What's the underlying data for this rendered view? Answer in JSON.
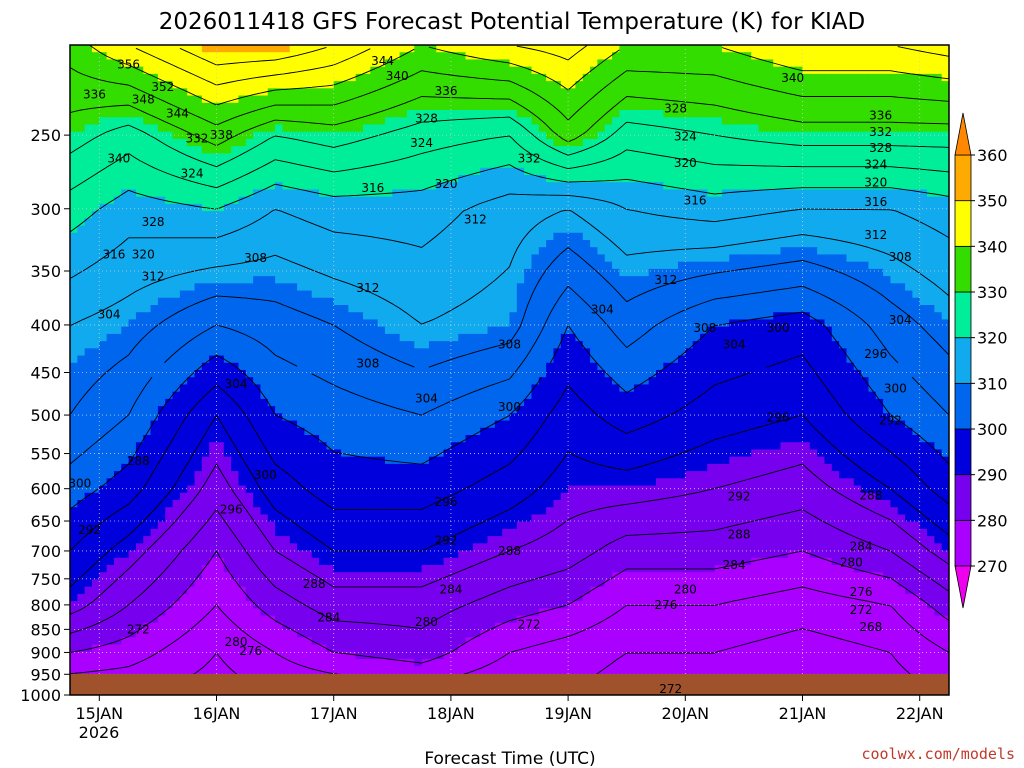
{
  "chart_data": {
    "type": "heatmap",
    "title": "2026011418 GFS Forecast Potential Temperature (K) for KIAD",
    "xlabel": "Forecast Time (UTC)",
    "ylabel": "",
    "x_ticks": [
      "15JAN",
      "16JAN",
      "17JAN",
      "18JAN",
      "19JAN",
      "20JAN",
      "21JAN",
      "22JAN"
    ],
    "x_year": "2026",
    "y_axis": {
      "scale": "log",
      "range": [
        1000,
        200
      ],
      "ticks": [
        250,
        300,
        350,
        400,
        450,
        500,
        550,
        600,
        650,
        700,
        750,
        800,
        850,
        900,
        950,
        1000
      ]
    },
    "x_range_hours": [
      -6,
      174
    ],
    "grid": true,
    "colorbar": {
      "levels": [
        270,
        280,
        290,
        300,
        310,
        320,
        330,
        340,
        350,
        360
      ],
      "colors": [
        "#ee00ee",
        "#aa00ff",
        "#7700ee",
        "#0000dd",
        "#0066ee",
        "#11aaee",
        "#00ee99",
        "#33dd00",
        "#ffff00",
        "#ffaa00",
        "#ff8800"
      ],
      "placement": "right",
      "extend": "both"
    },
    "contour_interval": 4,
    "profiles": [
      {
        "hour": -6,
        "levels": [
          [
            1000,
            272
          ],
          [
            900,
            280
          ],
          [
            800,
            290
          ],
          [
            700,
            296
          ],
          [
            600,
            302
          ],
          [
            500,
            308
          ],
          [
            400,
            312
          ],
          [
            300,
            322
          ],
          [
            250,
            330
          ],
          [
            200,
            338
          ]
        ]
      },
      {
        "hour": 6,
        "levels": [
          [
            1000,
            272
          ],
          [
            900,
            278
          ],
          [
            800,
            284
          ],
          [
            700,
            290
          ],
          [
            600,
            298
          ],
          [
            500,
            304
          ],
          [
            400,
            310
          ],
          [
            300,
            318
          ],
          [
            250,
            326
          ],
          [
            200,
            344
          ]
        ]
      },
      {
        "hour": 24,
        "levels": [
          [
            1000,
            270
          ],
          [
            900,
            272
          ],
          [
            800,
            276
          ],
          [
            700,
            280
          ],
          [
            600,
            286
          ],
          [
            500,
            292
          ],
          [
            400,
            304
          ],
          [
            300,
            320
          ],
          [
            250,
            334
          ],
          [
            200,
            352
          ]
        ]
      },
      {
        "hour": 36,
        "levels": [
          [
            1000,
            272
          ],
          [
            900,
            276
          ],
          [
            800,
            282
          ],
          [
            700,
            288
          ],
          [
            600,
            294
          ],
          [
            500,
            300
          ],
          [
            400,
            306
          ],
          [
            300,
            316
          ],
          [
            250,
            328
          ],
          [
            200,
            352
          ]
        ]
      },
      {
        "hour": 48,
        "levels": [
          [
            1000,
            272
          ],
          [
            900,
            280
          ],
          [
            800,
            286
          ],
          [
            700,
            292
          ],
          [
            600,
            298
          ],
          [
            500,
            302
          ],
          [
            400,
            308
          ],
          [
            300,
            318
          ],
          [
            250,
            330
          ],
          [
            200,
            348
          ]
        ]
      },
      {
        "hour": 66,
        "levels": [
          [
            1000,
            274
          ],
          [
            900,
            282
          ],
          [
            800,
            286
          ],
          [
            700,
            292
          ],
          [
            600,
            298
          ],
          [
            500,
            304
          ],
          [
            400,
            312
          ],
          [
            300,
            318
          ],
          [
            250,
            326
          ],
          [
            200,
            340
          ]
        ]
      },
      {
        "hour": 84,
        "levels": [
          [
            1000,
            272
          ],
          [
            900,
            276
          ],
          [
            800,
            282
          ],
          [
            700,
            288
          ],
          [
            600,
            294
          ],
          [
            500,
            300
          ],
          [
            400,
            310
          ],
          [
            300,
            314
          ],
          [
            250,
            324
          ],
          [
            200,
            344
          ]
        ]
      },
      {
        "hour": 96,
        "levels": [
          [
            1000,
            272
          ],
          [
            900,
            274
          ],
          [
            800,
            280
          ],
          [
            700,
            286
          ],
          [
            600,
            290
          ],
          [
            500,
            294
          ],
          [
            400,
            300
          ],
          [
            300,
            312
          ],
          [
            250,
            334
          ],
          [
            200,
            346
          ]
        ]
      },
      {
        "hour": 108,
        "levels": [
          [
            1000,
            270
          ],
          [
            900,
            272
          ],
          [
            800,
            276
          ],
          [
            700,
            282
          ],
          [
            600,
            290
          ],
          [
            500,
            298
          ],
          [
            400,
            306
          ],
          [
            300,
            316
          ],
          [
            250,
            326
          ],
          [
            200,
            340
          ]
        ]
      },
      {
        "hour": 126,
        "levels": [
          [
            1000,
            270
          ],
          [
            900,
            272
          ],
          [
            800,
            276
          ],
          [
            700,
            282
          ],
          [
            600,
            288
          ],
          [
            500,
            294
          ],
          [
            400,
            300
          ],
          [
            300,
            318
          ],
          [
            250,
            328
          ],
          [
            200,
            340
          ]
        ]
      },
      {
        "hour": 144,
        "levels": [
          [
            1000,
            270
          ],
          [
            900,
            270
          ],
          [
            800,
            274
          ],
          [
            700,
            280
          ],
          [
            600,
            286
          ],
          [
            500,
            292
          ],
          [
            400,
            298
          ],
          [
            300,
            316
          ],
          [
            250,
            330
          ],
          [
            200,
            344
          ]
        ]
      },
      {
        "hour": 162,
        "levels": [
          [
            1000,
            270
          ],
          [
            900,
            272
          ],
          [
            800,
            276
          ],
          [
            700,
            284
          ],
          [
            600,
            292
          ],
          [
            500,
            300
          ],
          [
            400,
            306
          ],
          [
            300,
            316
          ],
          [
            250,
            330
          ],
          [
            200,
            344
          ]
        ]
      },
      {
        "hour": 174,
        "levels": [
          [
            1000,
            272
          ],
          [
            900,
            276
          ],
          [
            800,
            282
          ],
          [
            700,
            290
          ],
          [
            600,
            298
          ],
          [
            500,
            304
          ],
          [
            400,
            310
          ],
          [
            300,
            318
          ],
          [
            250,
            330
          ],
          [
            200,
            346
          ]
        ]
      }
    ],
    "contour_labels": [
      {
        "t": "356",
        "h": 6,
        "p": 210
      },
      {
        "t": "336",
        "h": -1,
        "p": 226
      },
      {
        "t": "352",
        "h": 13,
        "p": 222
      },
      {
        "t": "348",
        "h": 9,
        "p": 229
      },
      {
        "t": "344",
        "h": 16,
        "p": 237
      },
      {
        "t": "332",
        "h": 20,
        "p": 252
      },
      {
        "t": "338",
        "h": 25,
        "p": 250
      },
      {
        "t": "340",
        "h": 4,
        "p": 265
      },
      {
        "t": "324",
        "h": 19,
        "p": 275
      },
      {
        "t": "328",
        "h": 11,
        "p": 310
      },
      {
        "t": "316",
        "h": 3,
        "p": 336
      },
      {
        "t": "320",
        "h": 9,
        "p": 336
      },
      {
        "t": "312",
        "h": 11,
        "p": 355
      },
      {
        "t": "308",
        "h": 32,
        "p": 339
      },
      {
        "t": "304",
        "h": 2,
        "p": 390
      },
      {
        "t": "312",
        "h": 55,
        "p": 365
      },
      {
        "t": "316",
        "h": 56,
        "p": 285
      },
      {
        "t": "344",
        "h": 58,
        "p": 208
      },
      {
        "t": "340",
        "h": 61,
        "p": 216
      },
      {
        "t": "336",
        "h": 71,
        "p": 224
      },
      {
        "t": "328",
        "h": 67,
        "p": 240
      },
      {
        "t": "324",
        "h": 66,
        "p": 255
      },
      {
        "t": "320",
        "h": 71,
        "p": 282
      },
      {
        "t": "312",
        "h": 77,
        "p": 308
      },
      {
        "t": "332",
        "h": 88,
        "p": 265
      },
      {
        "t": "308",
        "h": 55,
        "p": 440
      },
      {
        "t": "304",
        "h": 67,
        "p": 480
      },
      {
        "t": "308",
        "h": 84,
        "p": 420
      },
      {
        "t": "304",
        "h": 103,
        "p": 385
      },
      {
        "t": "300",
        "h": 84,
        "p": 490
      },
      {
        "t": "304",
        "h": 28,
        "p": 463
      },
      {
        "t": "300",
        "h": 34,
        "p": 580
      },
      {
        "t": "296",
        "h": 27,
        "p": 632
      },
      {
        "t": "288",
        "h": 8,
        "p": 560
      },
      {
        "t": "300",
        "h": -4,
        "p": 592
      },
      {
        "t": "292",
        "h": -2,
        "p": 665
      },
      {
        "t": "288",
        "h": 44,
        "p": 760
      },
      {
        "t": "284",
        "h": 47,
        "p": 825
      },
      {
        "t": "280",
        "h": 28,
        "p": 877
      },
      {
        "t": "276",
        "h": 31,
        "p": 897
      },
      {
        "t": "272",
        "h": 8,
        "p": 850
      },
      {
        "t": "296",
        "h": 71,
        "p": 620
      },
      {
        "t": "292",
        "h": 71,
        "p": 682
      },
      {
        "t": "288",
        "h": 84,
        "p": 700
      },
      {
        "t": "284",
        "h": 72,
        "p": 770
      },
      {
        "t": "280",
        "h": 67,
        "p": 835
      },
      {
        "t": "272",
        "h": 88,
        "p": 840
      },
      {
        "t": "276",
        "h": 116,
        "p": 800
      },
      {
        "t": "280",
        "h": 120,
        "p": 770
      },
      {
        "t": "284",
        "h": 130,
        "p": 725
      },
      {
        "t": "288",
        "h": 131,
        "p": 672
      },
      {
        "t": "292",
        "h": 131,
        "p": 612
      },
      {
        "t": "296",
        "h": 139,
        "p": 503
      },
      {
        "t": "304",
        "h": 130,
        "p": 420
      },
      {
        "t": "300",
        "h": 139,
        "p": 403
      },
      {
        "t": "308",
        "h": 124,
        "p": 403
      },
      {
        "t": "312",
        "h": 116,
        "p": 358
      },
      {
        "t": "316",
        "h": 122,
        "p": 294
      },
      {
        "t": "320",
        "h": 120,
        "p": 268
      },
      {
        "t": "324",
        "h": 120,
        "p": 251
      },
      {
        "t": "328",
        "h": 118,
        "p": 234
      },
      {
        "t": "340",
        "h": 142,
        "p": 217
      },
      {
        "t": "336",
        "h": 160,
        "p": 238
      },
      {
        "t": "332",
        "h": 160,
        "p": 248
      },
      {
        "t": "328",
        "h": 160,
        "p": 258
      },
      {
        "t": "324",
        "h": 159,
        "p": 269
      },
      {
        "t": "320",
        "h": 159,
        "p": 281
      },
      {
        "t": "316",
        "h": 159,
        "p": 295
      },
      {
        "t": "312",
        "h": 159,
        "p": 320
      },
      {
        "t": "308",
        "h": 164,
        "p": 338
      },
      {
        "t": "304",
        "h": 164,
        "p": 395
      },
      {
        "t": "296",
        "h": 159,
        "p": 430
      },
      {
        "t": "300",
        "h": 163,
        "p": 468
      },
      {
        "t": "292",
        "h": 162,
        "p": 507
      },
      {
        "t": "288",
        "h": 158,
        "p": 610
      },
      {
        "t": "284",
        "h": 156,
        "p": 692
      },
      {
        "t": "280",
        "h": 154,
        "p": 720
      },
      {
        "t": "276",
        "h": 156,
        "p": 775
      },
      {
        "t": "272",
        "h": 156,
        "p": 810
      },
      {
        "t": "268",
        "h": 158,
        "p": 845
      },
      {
        "t": "272",
        "h": 117,
        "p": 985
      }
    ],
    "annotations": [
      "coolwx.com/models"
    ]
  }
}
